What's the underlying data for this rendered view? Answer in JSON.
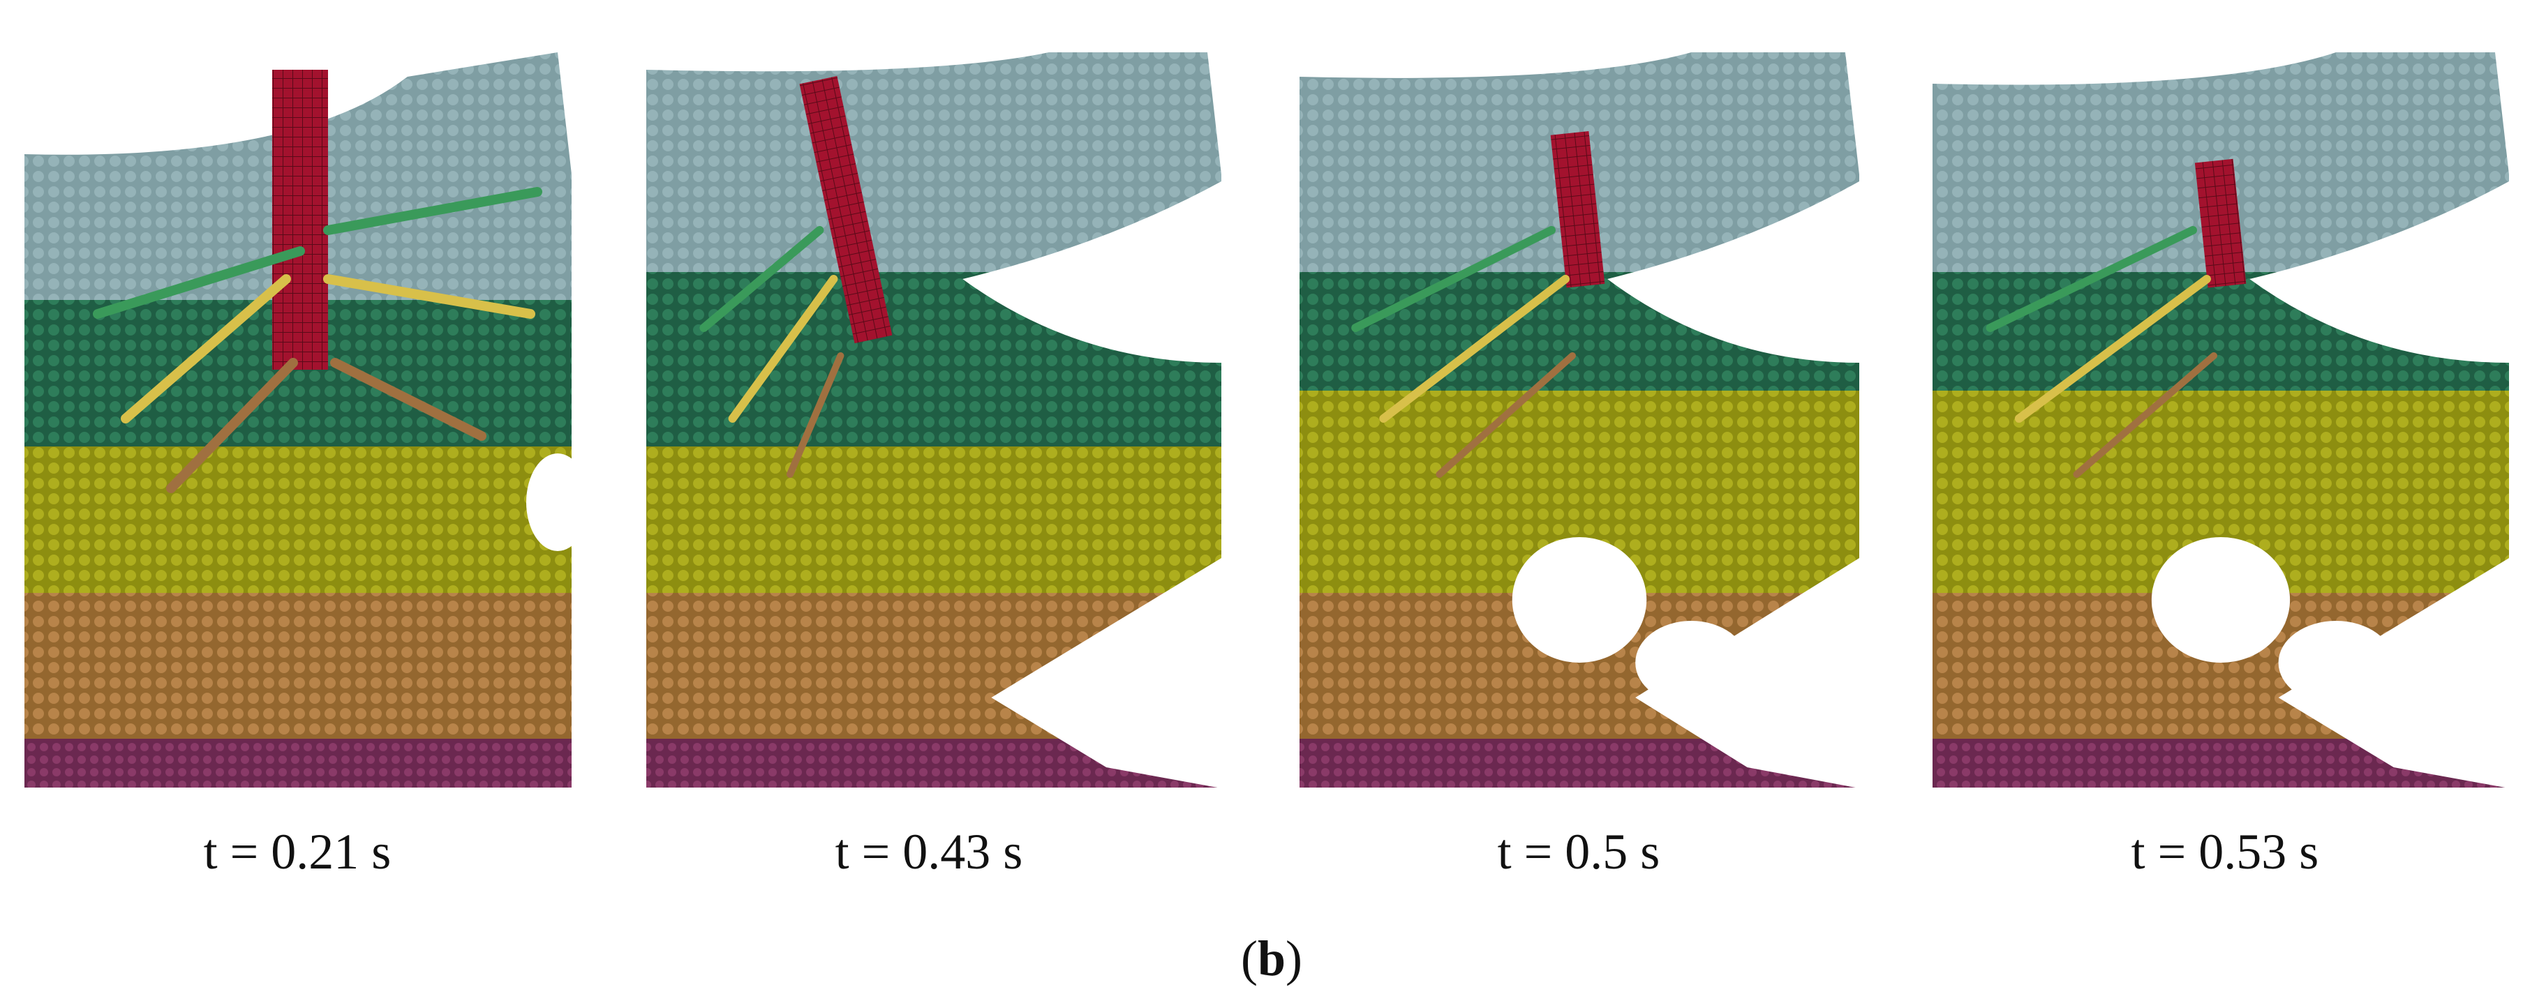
{
  "panels": [
    {
      "label": "t = 0.21 s"
    },
    {
      "label": "t = 0.43 s"
    },
    {
      "label": "t = 0.5 s"
    },
    {
      "label": "t = 0.53 s"
    }
  ],
  "caption": [
    "(",
    "b",
    ")"
  ]
}
